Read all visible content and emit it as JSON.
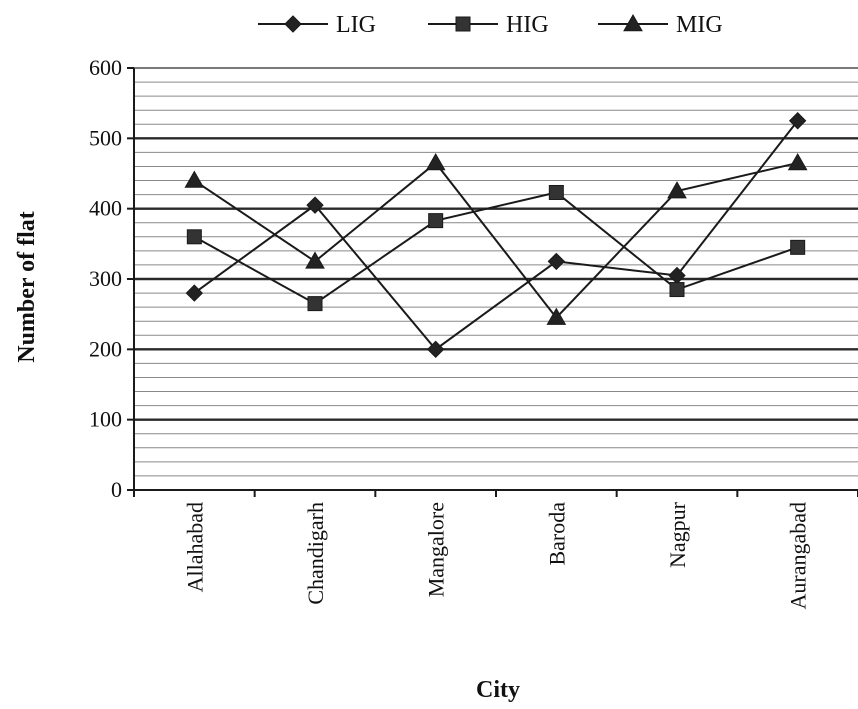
{
  "chart_data": {
    "type": "line",
    "title": "",
    "xlabel": "City",
    "ylabel": "Number of flat",
    "ylim": [
      0,
      600
    ],
    "ytick_step": 100,
    "minor_grid_step": 20,
    "grid": true,
    "legend_position": "top",
    "categories": [
      "Allahabad",
      "Chandigarh",
      "Mangalore",
      "Baroda",
      "Nagpur",
      "Aurangabad"
    ],
    "series": [
      {
        "name": "LIG",
        "marker": "diamond",
        "values": [
          280,
          405,
          200,
          325,
          305,
          525
        ]
      },
      {
        "name": "HIG",
        "marker": "square",
        "values": [
          360,
          265,
          383,
          423,
          285,
          345
        ]
      },
      {
        "name": "MIG",
        "marker": "triangle",
        "values": [
          440,
          325,
          465,
          245,
          425,
          465
        ]
      }
    ],
    "colors": {
      "line": "#1a1a1a",
      "grid": "#2a2a2a",
      "background": "#ffffff"
    }
  }
}
